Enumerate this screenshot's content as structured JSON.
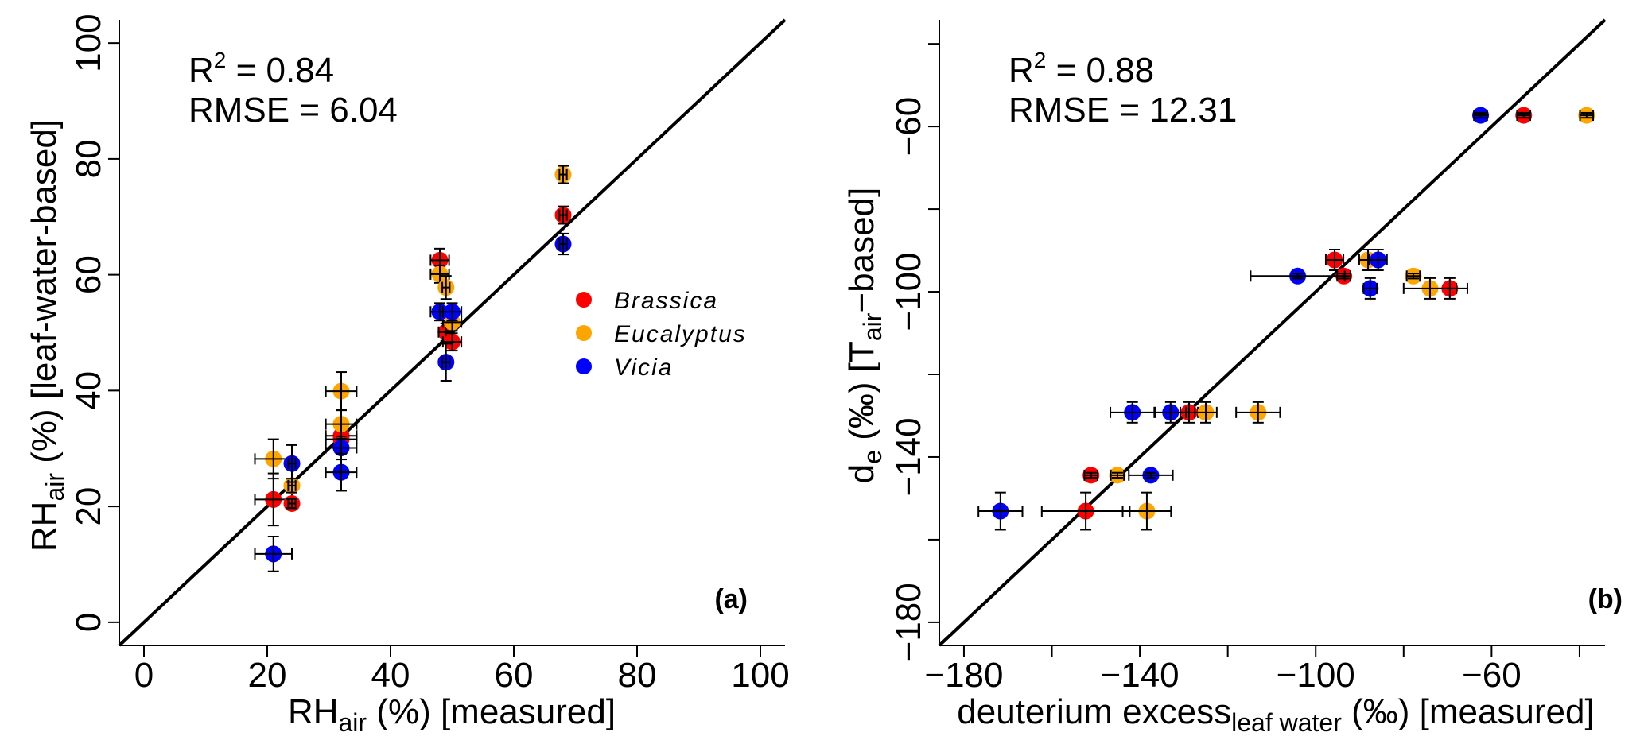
{
  "colors": {
    "Brassica": "#ff0000",
    "Eucalyptus": "#ffa500",
    "Vicia": "#0000ff"
  },
  "chart_data": [
    {
      "type": "scatter",
      "panel": "(a)",
      "xlabel": {
        "main": "RH",
        "sub": "air",
        "rest": " (%) [measured]"
      },
      "ylabel": {
        "main": "RH",
        "sub": "air",
        "rest": " (%) [leaf-water-based]"
      },
      "xlim": [
        -4,
        104
      ],
      "ylim": [
        -4,
        104
      ],
      "xticks": [
        0,
        20,
        40,
        60,
        80,
        100
      ],
      "xticklabels": [
        "0",
        "20",
        "40",
        "60",
        "80",
        "100"
      ],
      "yticks": [
        0,
        20,
        40,
        60,
        80,
        100
      ],
      "yticklabels": [
        "0",
        "20",
        "40",
        "60",
        "80",
        "100"
      ],
      "stats": {
        "r2_label": "R",
        "r2_sup": "2",
        "r2_value": " = 0.84",
        "rmse": "RMSE = 6.04"
      },
      "reference_line": "1:1",
      "legend": {
        "placement": "right-middle",
        "entries": [
          "Brassica",
          "Eucalyptus",
          "Vicia"
        ]
      },
      "series": [
        {
          "name": "Brassica",
          "points": [
            [
              21,
              21.2,
              3,
              4.5
            ],
            [
              24,
              20.5,
              0.6,
              0.8
            ],
            [
              32,
              32.2,
              2.5,
              1.5
            ],
            [
              32,
              31.6,
              2.5,
              1.5
            ],
            [
              48,
              62.5,
              1.5,
              2
            ],
            [
              49,
              50.1,
              1.2,
              1.5
            ],
            [
              50,
              48.4,
              1.5,
              1.5
            ],
            [
              68,
              70.3,
              0.6,
              1.5
            ]
          ]
        },
        {
          "name": "Eucalyptus",
          "points": [
            [
              21,
              28.2,
              3,
              3.4
            ],
            [
              24,
              23.6,
              0.6,
              1.2
            ],
            [
              32,
              39.9,
              2.5,
              3.3
            ],
            [
              32,
              34.2,
              2.5,
              2.5
            ],
            [
              48,
              60.1,
              1.5,
              1.5
            ],
            [
              49,
              57.8,
              0.6,
              2
            ],
            [
              50,
              51.8,
              1.5,
              1.5
            ],
            [
              68,
              77.3,
              0.6,
              1.5
            ]
          ]
        },
        {
          "name": "Vicia",
          "points": [
            [
              21,
              11.8,
              3,
              3
            ],
            [
              24,
              27.4,
              0.6,
              3.2
            ],
            [
              32,
              30.1,
              2.5,
              2
            ],
            [
              32,
              25.9,
              2.5,
              3.2
            ],
            [
              48,
              53.6,
              1.5,
              1.5
            ],
            [
              50,
              53.6,
              1.5,
              1.5
            ],
            [
              49,
              44.9,
              0.6,
              3.2
            ],
            [
              68,
              65.3,
              0.6,
              1.8
            ]
          ]
        }
      ]
    },
    {
      "type": "scatter",
      "panel": "(b)",
      "xlabel": {
        "main": "deuterium  excess",
        "sub": "leaf water",
        "rest": " (‰) [measured]"
      },
      "ylabel": {
        "main": "d",
        "sub": "e",
        "mid": " (‰) [T",
        "sub2": "air",
        "rest": "−based]"
      },
      "xlim": [
        -185.6,
        -34.2
      ],
      "ylim": [
        -185.6,
        -34.2
      ],
      "xticks": [
        -180,
        -160,
        -140,
        -120,
        -100,
        -80,
        -60,
        -40
      ],
      "xticklabels": [
        "−180",
        "",
        "−140",
        "",
        "−100",
        "",
        "−60",
        ""
      ],
      "yticks": [
        -180,
        -160,
        -140,
        -120,
        -100,
        -80,
        -60,
        -40
      ],
      "yticklabels": [
        "−180",
        "",
        "−140",
        "",
        "−100",
        "",
        "−60",
        ""
      ],
      "stats": {
        "r2_label": "R",
        "r2_sup": "2",
        "r2_value": " = 0.88",
        "rmse": "RMSE = 12.31"
      },
      "reference_line": "1:1",
      "series": [
        {
          "name": "Brassica",
          "points": [
            [
              -52.7,
              -57.3,
              1.5,
              0.6
            ],
            [
              -95.7,
              -92.3,
              2,
              2.5
            ],
            [
              -93.6,
              -96.2,
              1.5,
              0.6
            ],
            [
              -69.5,
              -99.2,
              4,
              2.5
            ],
            [
              -128.8,
              -129.2,
              2,
              2.5
            ],
            [
              -151.1,
              -144.4,
              1.5,
              0.6
            ],
            [
              -152.3,
              -153.1,
              10,
              4.5
            ]
          ]
        },
        {
          "name": "Eucalyptus",
          "points": [
            [
              -38.4,
              -57.3,
              1.5,
              0.6
            ],
            [
              -88.1,
              -92.3,
              2,
              2.5
            ],
            [
              -77.8,
              -96.2,
              1.5,
              0.6
            ],
            [
              -74.0,
              -99.2,
              6,
              2.5
            ],
            [
              -125.0,
              -129.2,
              2.5,
              2.5
            ],
            [
              -113.1,
              -129.2,
              5,
              2.5
            ],
            [
              -145.1,
              -144.4,
              1.5,
              0.6
            ],
            [
              -138.4,
              -153.1,
              5.5,
              4.5
            ]
          ]
        },
        {
          "name": "Vicia",
          "points": [
            [
              -62.5,
              -57.3,
              1.5,
              0.6
            ],
            [
              -104.1,
              -96.2,
              10.7,
              0.6
            ],
            [
              -85.8,
              -92.3,
              2,
              2.5
            ],
            [
              -87.6,
              -99.2,
              1.5,
              2.5
            ],
            [
              -141.7,
              -129.2,
              5,
              2.5
            ],
            [
              -133.0,
              -129.2,
              3.5,
              2.5
            ],
            [
              -137.5,
              -144.4,
              5,
              0.6
            ],
            [
              -171.7,
              -153.1,
              5,
              4.5
            ]
          ]
        }
      ]
    }
  ]
}
